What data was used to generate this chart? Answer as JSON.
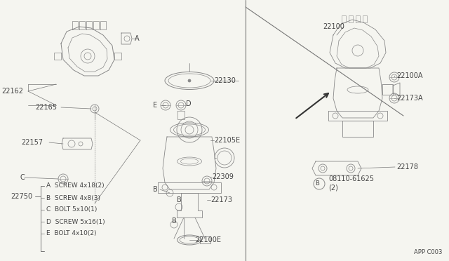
{
  "bg_color": "#f5f5f0",
  "line_color": "#777777",
  "text_color": "#444444",
  "draw_color": "#888888",
  "fig_width": 6.4,
  "fig_height": 3.72,
  "dpi": 100,
  "parts_legend": [
    [
      "A",
      "SCREW 4x18(2)"
    ],
    [
      "B",
      "SCREW 4x8(3)"
    ],
    [
      "C",
      "BOLT 5x10(1)"
    ],
    [
      "D",
      "SCREW 5x16(1)"
    ],
    [
      "E",
      "BOLT 4x10(2)"
    ]
  ],
  "legend_part_number": "22750",
  "footer": "APP C003",
  "lw": 0.6
}
